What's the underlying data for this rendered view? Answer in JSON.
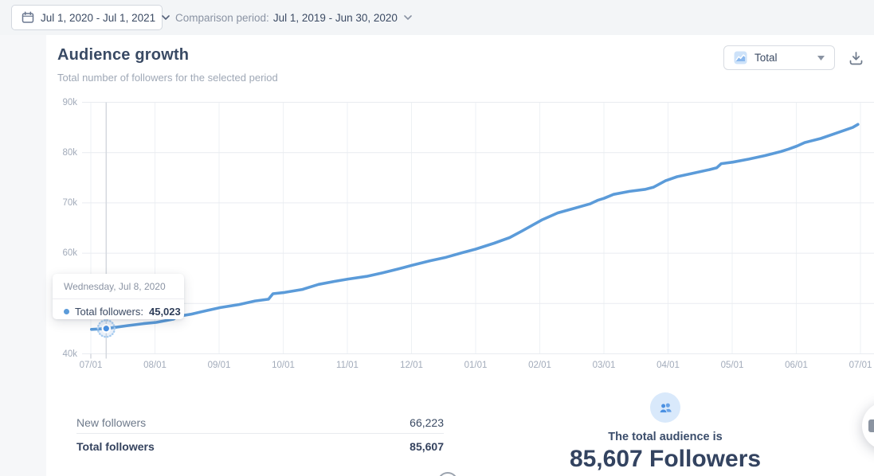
{
  "topbar": {
    "date_range": "Jul 1, 2020 - Jul 1, 2021",
    "comparison_label": "Comparison period:",
    "comparison_value": "Jul 1, 2019 - Jun 30, 2020"
  },
  "header": {
    "title": "Audience growth",
    "subtitle": "Total number of followers for the selected period",
    "metric_select_value": "Total"
  },
  "chart_data": {
    "type": "line",
    "title": "Audience growth",
    "xlabel": "",
    "ylabel": "",
    "ylim": [
      40000,
      90000
    ],
    "grid": true,
    "y_ticks": [
      "40k",
      "50k",
      "60k",
      "70k",
      "80k",
      "90k"
    ],
    "x_ticks": [
      "07/01",
      "08/01",
      "09/01",
      "10/01",
      "11/01",
      "12/01",
      "01/01",
      "02/01",
      "03/01",
      "04/01",
      "05/01",
      "06/01",
      "07/01"
    ],
    "line_color": "#5b9bd9",
    "series": [
      {
        "name": "Total followers",
        "points": [
          [
            0.01,
            44850
          ],
          [
            0.24,
            45023
          ],
          [
            0.57,
            45600
          ],
          [
            0.82,
            46000
          ],
          [
            1.02,
            46250
          ],
          [
            1.25,
            46800
          ],
          [
            1.29,
            46900
          ],
          [
            1.34,
            47400
          ],
          [
            1.57,
            47900
          ],
          [
            1.81,
            48600
          ],
          [
            2.02,
            49200
          ],
          [
            2.31,
            49800
          ],
          [
            2.56,
            50500
          ],
          [
            2.77,
            50850
          ],
          [
            2.84,
            51950
          ],
          [
            3.02,
            52200
          ],
          [
            3.3,
            52800
          ],
          [
            3.55,
            53800
          ],
          [
            3.8,
            54400
          ],
          [
            4.01,
            54850
          ],
          [
            4.3,
            55400
          ],
          [
            4.55,
            56100
          ],
          [
            4.8,
            56900
          ],
          [
            5.01,
            57600
          ],
          [
            5.29,
            58500
          ],
          [
            5.54,
            59200
          ],
          [
            5.79,
            60100
          ],
          [
            6.0,
            60800
          ],
          [
            6.29,
            62000
          ],
          [
            6.53,
            63100
          ],
          [
            6.72,
            64400
          ],
          [
            7.03,
            66600
          ],
          [
            7.28,
            68000
          ],
          [
            7.53,
            68900
          ],
          [
            7.78,
            69800
          ],
          [
            7.9,
            70500
          ],
          [
            8.0,
            70900
          ],
          [
            8.15,
            71700
          ],
          [
            8.4,
            72300
          ],
          [
            8.65,
            72700
          ],
          [
            8.77,
            73100
          ],
          [
            8.96,
            74400
          ],
          [
            9.14,
            75200
          ],
          [
            9.39,
            75900
          ],
          [
            9.64,
            76600
          ],
          [
            9.76,
            77000
          ],
          [
            9.83,
            77800
          ],
          [
            10.01,
            78100
          ],
          [
            10.26,
            78700
          ],
          [
            10.51,
            79400
          ],
          [
            10.76,
            80200
          ],
          [
            10.88,
            80700
          ],
          [
            11.01,
            81300
          ],
          [
            11.13,
            82000
          ],
          [
            11.38,
            82800
          ],
          [
            11.63,
            83900
          ],
          [
            11.88,
            85000
          ],
          [
            11.96,
            85607
          ]
        ]
      }
    ],
    "highlight": {
      "t": 0.24,
      "value": 45023
    }
  },
  "tooltip": {
    "date": "Wednesday, Jul 8, 2020",
    "series_label": "Total followers:",
    "value": "45,023"
  },
  "summary_table": {
    "rows": [
      {
        "label": "New followers",
        "value": "66,223"
      },
      {
        "label": "Total followers",
        "value": "85,607"
      }
    ]
  },
  "audience_summary": {
    "line1": "The total audience is",
    "line2": "85,607 Followers"
  }
}
